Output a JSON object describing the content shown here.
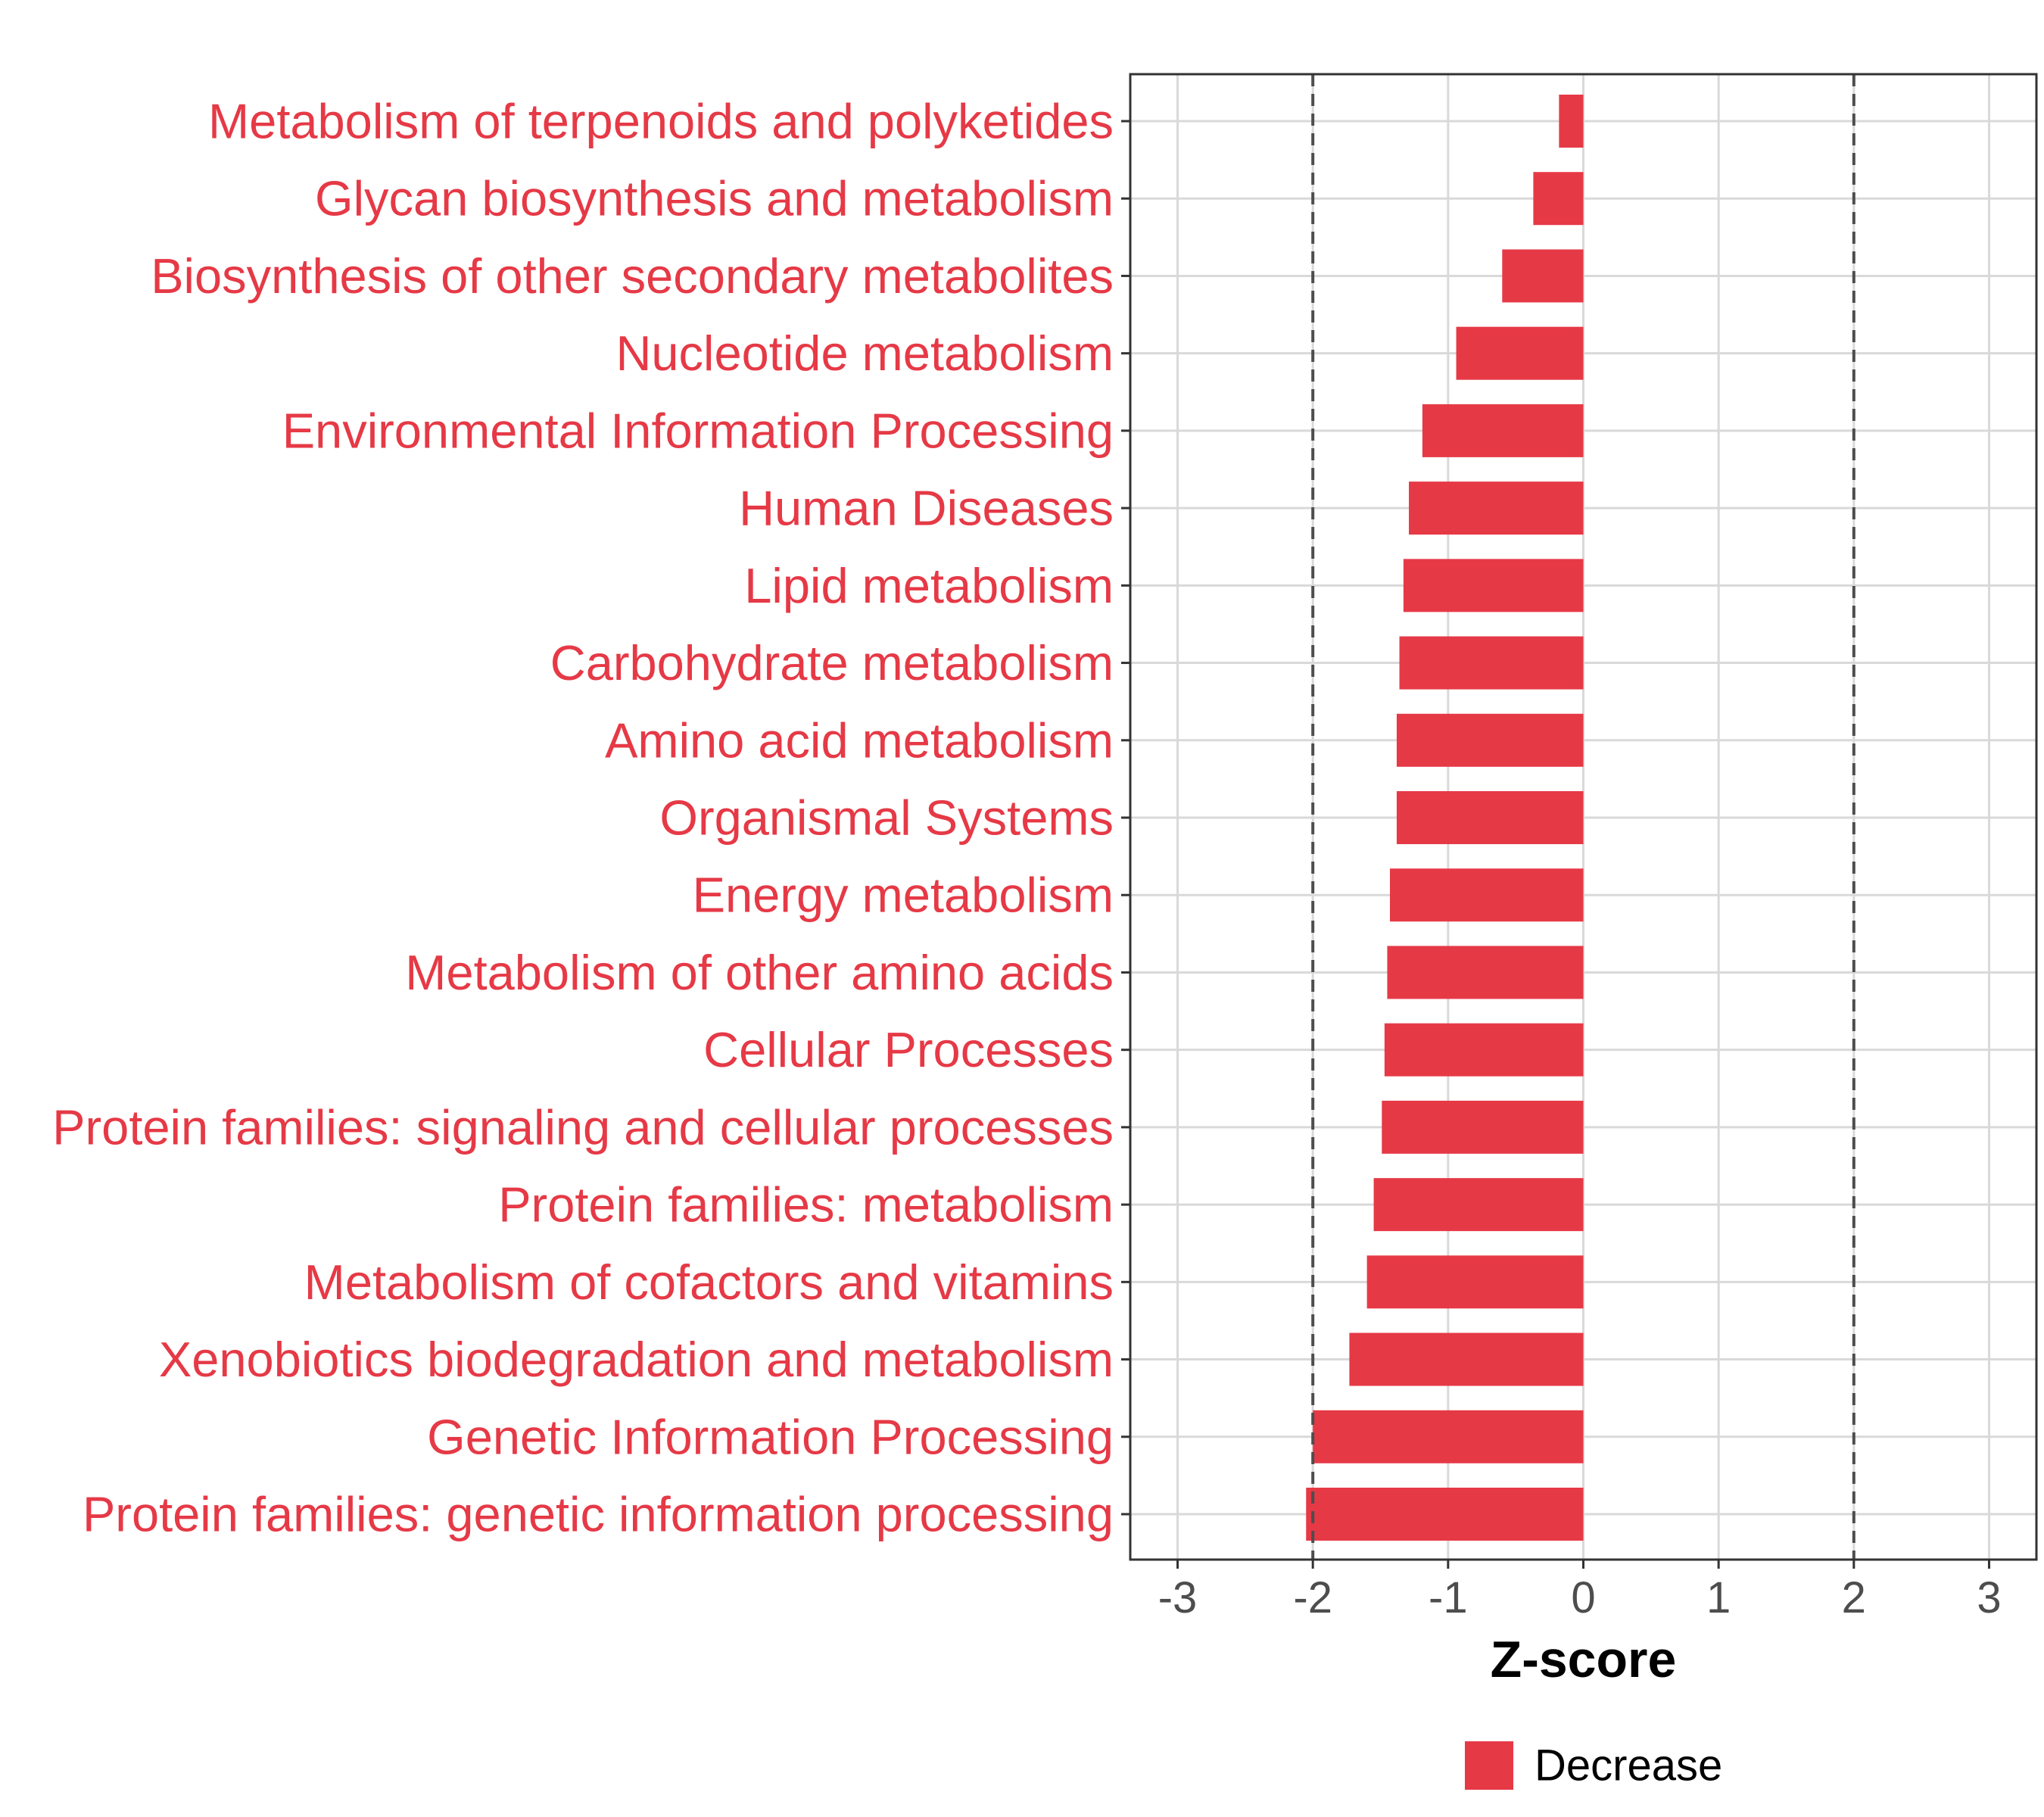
{
  "chart_data": {
    "type": "bar",
    "orientation": "horizontal",
    "categories": [
      "Metabolism of terpenoids and polyketides",
      "Glycan biosynthesis and metabolism",
      "Biosynthesis of other secondary metabolites",
      "Nucleotide metabolism",
      "Environmental Information Processing",
      "Human Diseases",
      "Lipid metabolism",
      "Carbohydrate metabolism",
      "Amino acid metabolism",
      "Organismal Systems",
      "Energy metabolism",
      "Metabolism of other amino acids",
      "Cellular Processes",
      "Protein families: signaling and cellular processes",
      "Protein families: metabolism",
      "Metabolism of cofactors and vitamins",
      "Xenobiotics biodegradation and metabolism",
      "Genetic Information Processing",
      "Protein families: genetic information processing"
    ],
    "values": [
      -0.18,
      -0.37,
      -0.6,
      -0.94,
      -1.19,
      -1.29,
      -1.33,
      -1.36,
      -1.38,
      -1.38,
      -1.43,
      -1.45,
      -1.47,
      -1.49,
      -1.55,
      -1.6,
      -1.73,
      -2.0,
      -2.05
    ],
    "xlabel": "Z-score",
    "ylabel": "",
    "xlim": [
      -3.35,
      3.35
    ],
    "xticks": [
      -3,
      -2,
      -1,
      0,
      1,
      2,
      3
    ],
    "reference_lines": [
      -2,
      2
    ],
    "grid": true,
    "legend": {
      "position": "bottom",
      "entries": [
        {
          "name": "Decrease",
          "color": "#e63946"
        }
      ]
    },
    "colors": {
      "bar": "#e63946",
      "label": "#e63946",
      "grid": "#d9d9d9",
      "reference_line": "#4d4d4d",
      "frame": "#333333"
    }
  }
}
